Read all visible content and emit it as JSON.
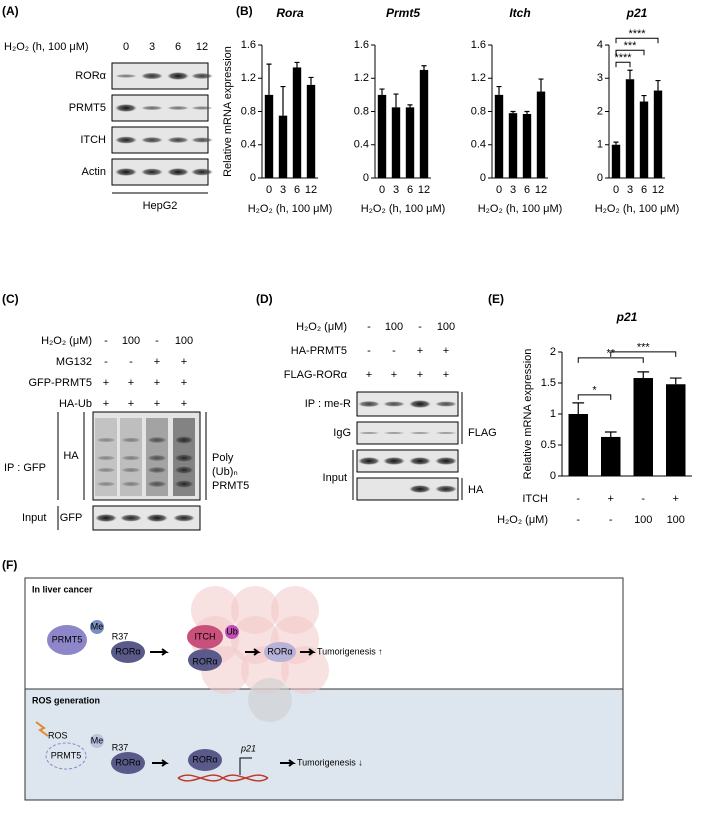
{
  "panel_a": {
    "label": "(A)",
    "treatment": "H₂O₂ (h, 100 μM)",
    "times": [
      "0",
      "3",
      "6",
      "12"
    ],
    "blots": [
      "RORα",
      "PRMT5",
      "ITCH",
      "Actin"
    ],
    "cell_line": "HepG2"
  },
  "panel_b": {
    "label": "(B)"
  },
  "panel_e": {
    "label": "(E)"
  },
  "chart_data": [
    {
      "type": "bar",
      "title": "Rora",
      "ylabel": "Relative mRNA expression",
      "xlabel": "H₂O₂ (h, 100 μM)",
      "categories": [
        "0",
        "3",
        "6",
        "12"
      ],
      "values": [
        1.0,
        0.75,
        1.33,
        1.12
      ],
      "errors": [
        0.37,
        0.35,
        0.06,
        0.09
      ],
      "color": "#000000",
      "ylim": [
        0,
        1.6
      ],
      "yticks": [
        0,
        0.4,
        0.8,
        1.2,
        1.6
      ]
    },
    {
      "type": "bar",
      "title": "Prmt5",
      "xlabel": "H₂O₂ (h, 100 μM)",
      "categories": [
        "0",
        "3",
        "6",
        "12"
      ],
      "values": [
        1.0,
        0.85,
        0.85,
        1.3
      ],
      "errors": [
        0.07,
        0.16,
        0.03,
        0.05
      ],
      "color": "#000000",
      "ylim": [
        0,
        1.6
      ],
      "yticks": [
        0,
        0.4,
        0.8,
        1.2,
        1.6
      ]
    },
    {
      "type": "bar",
      "title": "Itch",
      "xlabel": "H₂O₂ (h, 100 μM)",
      "categories": [
        "0",
        "3",
        "6",
        "12"
      ],
      "values": [
        1.0,
        0.78,
        0.77,
        1.04
      ],
      "errors": [
        0.1,
        0.02,
        0.03,
        0.15
      ],
      "color": "#000000",
      "ylim": [
        0,
        1.6
      ],
      "yticks": [
        0,
        0.4,
        0.8,
        1.2,
        1.6
      ]
    },
    {
      "type": "bar",
      "title": "p21",
      "xlabel": "H₂O₂ (h, 100 μM)",
      "categories": [
        "0",
        "3",
        "6",
        "12"
      ],
      "values": [
        1.0,
        2.97,
        2.3,
        2.63
      ],
      "errors": [
        0.08,
        0.27,
        0.18,
        0.3
      ],
      "color": "#000000",
      "ylim": [
        0,
        4
      ],
      "yticks": [
        0,
        1,
        2,
        3,
        4
      ],
      "significance": [
        {
          "bars": [
            0,
            1
          ],
          "label": "****"
        },
        {
          "bars": [
            0,
            2
          ],
          "label": "***"
        },
        {
          "bars": [
            0,
            3
          ],
          "label": "****"
        }
      ]
    },
    {
      "type": "bar",
      "title": "p21",
      "ylabel": "Relative mRNA expression",
      "categories": [
        null,
        null,
        null,
        null
      ],
      "values": [
        1.0,
        0.63,
        1.58,
        1.48
      ],
      "errors": [
        0.18,
        0.08,
        0.1,
        0.1
      ],
      "color": "#000000",
      "ylim": [
        0,
        2
      ],
      "yticks": [
        0,
        0.5,
        1,
        1.5,
        2
      ],
      "conditions": [
        {
          "name": "ITCH",
          "values": [
            "-",
            "+",
            "-",
            "+"
          ]
        },
        {
          "name": "H₂O₂ (μM)",
          "values": [
            "-",
            "-",
            "100",
            "100"
          ]
        }
      ],
      "significance": [
        {
          "bars": [
            0,
            1
          ],
          "label": "*"
        },
        {
          "bars": [
            0,
            2
          ],
          "label": "**"
        },
        {
          "bars": [
            1,
            3
          ],
          "label": "***"
        }
      ]
    }
  ],
  "panel_c": {
    "label": "(C)",
    "conditions": [
      {
        "name": "H₂O₂ (μM)",
        "values": [
          "-",
          "100",
          "-",
          "100"
        ]
      },
      {
        "name": "MG132",
        "values": [
          "-",
          "-",
          "+",
          "+"
        ]
      },
      {
        "name": "GFP-PRMT5",
        "values": [
          "+",
          "+",
          "+",
          "+"
        ]
      },
      {
        "name": "HA-Ub",
        "values": [
          "+",
          "+",
          "+",
          "+"
        ]
      }
    ],
    "ip_label": "IP : GFP",
    "blot_ha": "HA",
    "annotation": [
      "Poly",
      "(Ub)ₙ",
      "PRMT5"
    ],
    "input_label": "Input",
    "blot_gfp": "GFP"
  },
  "panel_d": {
    "label": "(D)",
    "conditions": [
      {
        "name": "H₂O₂ (μM)",
        "values": [
          "-",
          "100",
          "-",
          "100"
        ]
      },
      {
        "name": "HA-PRMT5",
        "values": [
          "-",
          "-",
          "+",
          "+"
        ]
      },
      {
        "name": "FLAG-RORα",
        "values": [
          "+",
          "+",
          "+",
          "+"
        ]
      }
    ],
    "ip_label": "IP : me-R",
    "igg_label": "IgG",
    "input_label": "Input",
    "blot_flag": "FLAG",
    "blot_ha": "HA"
  },
  "panel_f": {
    "label": "(F)",
    "top_title": "In liver cancer",
    "bottom_title": "ROS generation",
    "prmt5": "PRMT5",
    "me": "Me",
    "r37": "R37",
    "rora": "RORα",
    "itch": "ITCH",
    "ub": "Ub",
    "tumor_up": "Tumorigenesis ↑",
    "ros": "ROS",
    "p21": "p21",
    "tumor_down": "Tumorigenesis ↓"
  }
}
